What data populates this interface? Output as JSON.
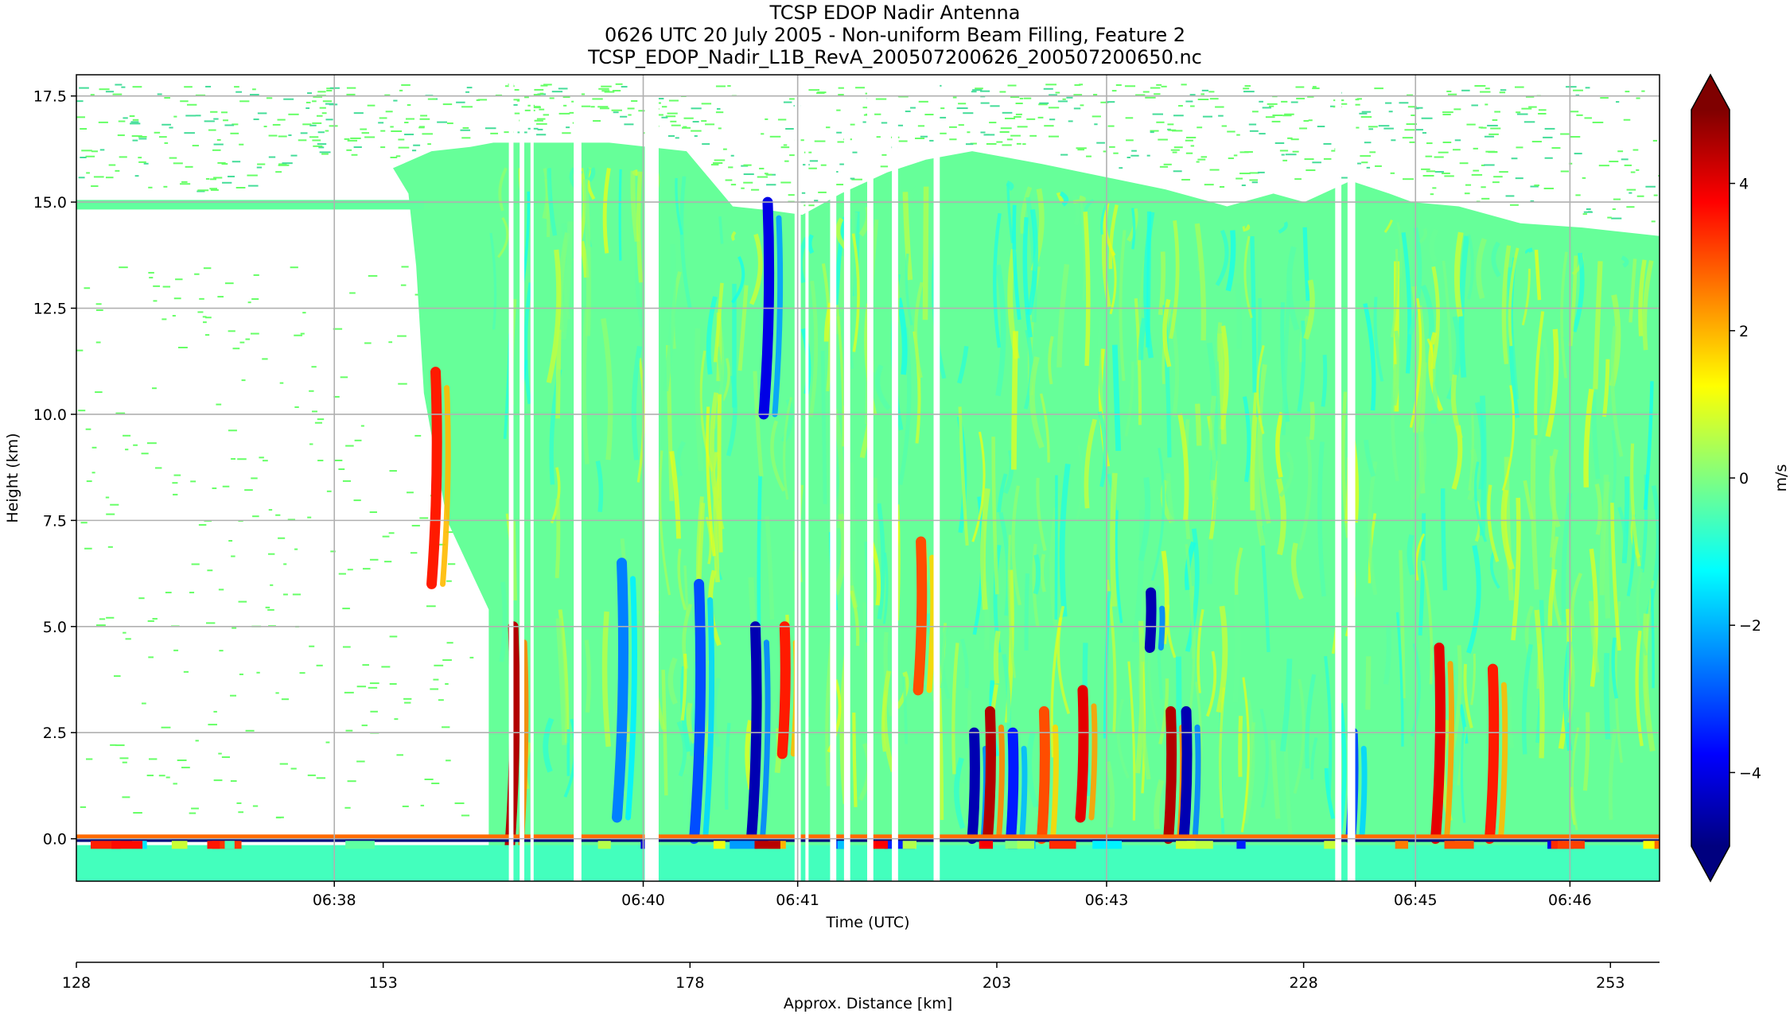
{
  "chart_data": [
    {
      "type": "heatmap",
      "title": "TCSP EDOP Nadir Antenna",
      "subtitle": "0626 UTC 20 July 2005 - Non-uniform Beam Filling, Feature 2",
      "filename": "TCSP_EDOP_Nadir_L1B_RevA_200507200626_200507200650.nc",
      "xlabel": "Time (UTC)",
      "ylabel": "Height (km)",
      "xticks": [
        "06:38",
        "06:40",
        "06:41",
        "06:43",
        "06:45",
        "06:46"
      ],
      "xtick_minutes": [
        37.72,
        39.72,
        40.72,
        42.72,
        44.72,
        45.72
      ],
      "xlim_minutes": [
        36.05,
        46.3
      ],
      "yticks": [
        "0.0",
        "2.5",
        "5.0",
        "7.5",
        "10.0",
        "12.5",
        "15.0",
        "17.5"
      ],
      "ytick_values": [
        0.0,
        2.5,
        5.0,
        7.5,
        10.0,
        12.5,
        15.0,
        17.5
      ],
      "ylim": [
        -1.0,
        18.0
      ],
      "grid": true,
      "colorbar": {
        "label": "m/s",
        "ticks": [
          "4",
          "2",
          "0",
          "−2",
          "−4"
        ],
        "tick_values": [
          4,
          2,
          0,
          -2,
          -4
        ],
        "range": [
          -5,
          5
        ],
        "colormap": "jet",
        "colors": [
          "#00007f",
          "#0000ff",
          "#0080ff",
          "#00ffff",
          "#80ff80",
          "#ffff00",
          "#ff8000",
          "#ff0000",
          "#7f0000"
        ],
        "extend": "both"
      },
      "cloud_top_profile": {
        "minutes": [
          36.05,
          37.2,
          37.4,
          37.7,
          38.1,
          38.35,
          38.6,
          38.75,
          39.1,
          39.5,
          40.0,
          40.3,
          40.55,
          40.75,
          41.0,
          41.3,
          41.55,
          41.85,
          42.3,
          42.7,
          43.1,
          43.5,
          43.8,
          44.0,
          44.3,
          44.55,
          44.7,
          45.0,
          45.4,
          45.8,
          46.3
        ],
        "top_km": [
          15.0,
          15.1,
          15.6,
          15.9,
          15.8,
          16.2,
          16.3,
          16.4,
          16.4,
          16.4,
          16.2,
          14.9,
          14.8,
          14.7,
          15.2,
          15.7,
          16.0,
          16.2,
          15.9,
          15.6,
          15.3,
          14.9,
          15.2,
          15.0,
          15.5,
          15.2,
          15.0,
          14.9,
          14.5,
          14.4,
          14.2
        ]
      },
      "data_gaps_minutes": [
        [
          38.85,
          38.88
        ],
        [
          38.92,
          38.95
        ],
        [
          38.99,
          39.01
        ],
        [
          39.27,
          39.32
        ],
        [
          39.73,
          39.82
        ],
        [
          40.7,
          40.74
        ],
        [
          40.77,
          40.79
        ],
        [
          40.93,
          40.97
        ],
        [
          41.02,
          41.06
        ],
        [
          41.17,
          41.21
        ],
        [
          41.33,
          41.37
        ],
        [
          41.6,
          41.64
        ],
        [
          44.2,
          44.24
        ],
        [
          44.28,
          44.33
        ]
      ],
      "velocity_features": [
        {
          "minute": 38.35,
          "bottom_km": 6.0,
          "top_km": 11.0,
          "value": 3.5
        },
        {
          "minute": 38.85,
          "bottom_km": -0.5,
          "top_km": 5.0,
          "value": 4.5
        },
        {
          "minute": 39.55,
          "bottom_km": 0.5,
          "top_km": 6.5,
          "value": -2.5
        },
        {
          "minute": 40.05,
          "bottom_km": 0.0,
          "top_km": 6.0,
          "value": -3.0
        },
        {
          "minute": 40.42,
          "bottom_km": 0.0,
          "top_km": 5.0,
          "value": -4.5
        },
        {
          "minute": 40.5,
          "bottom_km": 10.0,
          "top_km": 15.0,
          "value": -4.0
        },
        {
          "minute": 40.62,
          "bottom_km": 2.0,
          "top_km": 5.0,
          "value": 3.5
        },
        {
          "minute": 41.5,
          "bottom_km": 3.5,
          "top_km": 7.0,
          "value": 3.0
        },
        {
          "minute": 41.85,
          "bottom_km": 0.0,
          "top_km": 2.5,
          "value": -4.5
        },
        {
          "minute": 41.95,
          "bottom_km": 0.0,
          "top_km": 3.0,
          "value": 4.5
        },
        {
          "minute": 42.1,
          "bottom_km": 0.0,
          "top_km": 2.5,
          "value": -3.5
        },
        {
          "minute": 42.3,
          "bottom_km": 0.0,
          "top_km": 3.0,
          "value": 3.0
        },
        {
          "minute": 42.55,
          "bottom_km": 0.5,
          "top_km": 3.5,
          "value": 4.0
        },
        {
          "minute": 43.0,
          "bottom_km": 4.5,
          "top_km": 5.8,
          "value": -4.5
        },
        {
          "minute": 43.12,
          "bottom_km": 0.0,
          "top_km": 3.0,
          "value": 4.5
        },
        {
          "minute": 43.22,
          "bottom_km": 0.0,
          "top_km": 3.0,
          "value": -4.5
        },
        {
          "minute": 44.3,
          "bottom_km": 0.0,
          "top_km": 2.5,
          "value": -3.0
        },
        {
          "minute": 44.85,
          "bottom_km": 0.0,
          "top_km": 4.5,
          "value": 4.0
        },
        {
          "minute": 45.2,
          "bottom_km": 0.0,
          "top_km": 4.0,
          "value": 3.5
        }
      ]
    },
    {
      "type": "line",
      "xlabel": "Approx. Distance [km]",
      "xticks": [
        "128",
        "153",
        "178",
        "203",
        "228",
        "253"
      ],
      "xtick_values": [
        128,
        153,
        178,
        203,
        228,
        253
      ],
      "xlim": [
        128,
        257
      ]
    }
  ]
}
